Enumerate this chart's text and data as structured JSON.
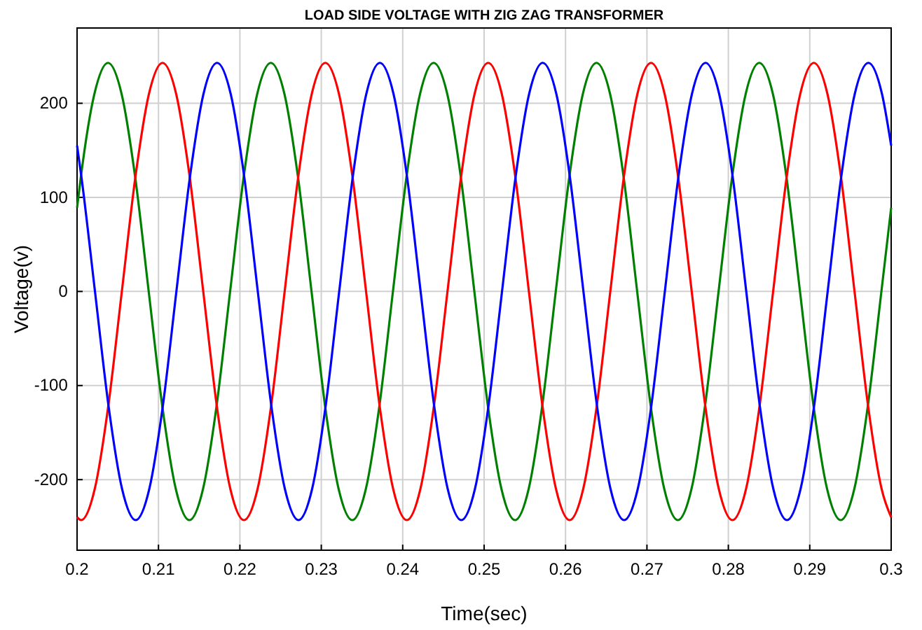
{
  "chart_data": {
    "type": "line",
    "title": "LOAD SIDE VOLTAGE WITH ZIG ZAG TRANSFORMER",
    "xlabel": "Time(sec)",
    "ylabel": "Voltage(v)",
    "xlim": [
      0.2,
      0.3
    ],
    "ylim": [
      -275,
      280
    ],
    "xticks": [
      0.2,
      0.21,
      0.22,
      0.23,
      0.24,
      0.25,
      0.26,
      0.27,
      0.28,
      0.29,
      0.3
    ],
    "yticks": [
      -200,
      -100,
      0,
      100,
      200
    ],
    "grid": true,
    "marker": "none",
    "line_style": "solid",
    "series": [
      {
        "color": "#008000",
        "x": [
          0.2,
          0.20047,
          0.20213,
          0.2038,
          0.20547,
          0.20713,
          0.2088,
          0.21047,
          0.21213,
          0.2138,
          0.21547,
          0.21713,
          0.2188,
          0.22047,
          0.22213,
          0.2238,
          0.22547,
          0.22713,
          0.2288,
          0.23047,
          0.23213,
          0.2338,
          0.23547,
          0.23713,
          0.2388,
          0.24047,
          0.24213,
          0.2438,
          0.24547,
          0.24713,
          0.2488,
          0.25047,
          0.25213,
          0.2538,
          0.25547,
          0.25713,
          0.2588,
          0.26047,
          0.26213,
          0.2638,
          0.26547,
          0.26713,
          0.2688,
          0.27047,
          0.27213,
          0.2738,
          0.27547,
          0.27713,
          0.2788,
          0.28047,
          0.28213,
          0.2838,
          0.28547,
          0.28713,
          0.2888,
          0.29047,
          0.29213,
          0.2938,
          0.29547,
          0.29713,
          0.2988,
          0.3
        ],
        "values": [
          89,
          122,
          210,
          243,
          210,
          122,
          0,
          -122,
          -210,
          -243,
          -210,
          -122,
          0,
          122,
          210,
          243,
          210,
          122,
          0,
          -122,
          -210,
          -243,
          -210,
          -122,
          0,
          122,
          210,
          243,
          210,
          122,
          0,
          -122,
          -210,
          -243,
          -210,
          -122,
          0,
          122,
          210,
          243,
          210,
          122,
          0,
          -122,
          -210,
          -243,
          -210,
          -122,
          0,
          122,
          210,
          243,
          210,
          122,
          0,
          -122,
          -210,
          -243,
          -210,
          -122,
          0,
          89
        ]
      },
      {
        "color": "#ff0000",
        "x": [
          0.2,
          0.2005,
          0.20217,
          0.20383,
          0.2055,
          0.20717,
          0.20883,
          0.2105,
          0.21217,
          0.21383,
          0.2155,
          0.21717,
          0.21883,
          0.2205,
          0.22217,
          0.22383,
          0.2255,
          0.22717,
          0.22883,
          0.2305,
          0.23217,
          0.23383,
          0.2355,
          0.23717,
          0.23883,
          0.2405,
          0.24217,
          0.24383,
          0.2455,
          0.24717,
          0.24883,
          0.2505,
          0.25217,
          0.25383,
          0.2555,
          0.25717,
          0.25883,
          0.2605,
          0.26217,
          0.26383,
          0.2655,
          0.26717,
          0.26883,
          0.2705,
          0.27217,
          0.27383,
          0.2755,
          0.27717,
          0.27883,
          0.2805,
          0.28217,
          0.28383,
          0.2855,
          0.28717,
          0.28883,
          0.2905,
          0.29217,
          0.29383,
          0.2955,
          0.29717,
          0.29883,
          0.3
        ],
        "values": [
          -240,
          -243,
          -210,
          -122,
          0,
          122,
          210,
          243,
          210,
          122,
          0,
          -122,
          -210,
          -243,
          -210,
          -122,
          0,
          122,
          210,
          243,
          210,
          122,
          0,
          -122,
          -210,
          -243,
          -210,
          -122,
          0,
          122,
          210,
          243,
          210,
          122,
          0,
          -122,
          -210,
          -243,
          -210,
          -122,
          0,
          122,
          210,
          243,
          210,
          122,
          0,
          -122,
          -210,
          -243,
          -210,
          -122,
          0,
          122,
          210,
          243,
          210,
          122,
          0,
          -122,
          -210,
          -240
        ]
      },
      {
        "color": "#0000ff",
        "x": [
          0.2,
          0.20053,
          0.2022,
          0.20387,
          0.20553,
          0.2072,
          0.20887,
          0.21053,
          0.2122,
          0.21387,
          0.21553,
          0.2172,
          0.21887,
          0.22053,
          0.2222,
          0.22387,
          0.22553,
          0.2272,
          0.22887,
          0.23053,
          0.2322,
          0.23387,
          0.23553,
          0.2372,
          0.23887,
          0.24053,
          0.2422,
          0.24387,
          0.24553,
          0.2472,
          0.24887,
          0.25053,
          0.2522,
          0.25387,
          0.25553,
          0.2572,
          0.25887,
          0.26053,
          0.2622,
          0.26387,
          0.26553,
          0.2672,
          0.26887,
          0.27053,
          0.2722,
          0.27387,
          0.27553,
          0.2772,
          0.27887,
          0.28053,
          0.2822,
          0.28387,
          0.28553,
          0.2872,
          0.28887,
          0.29053,
          0.2922,
          0.29387,
          0.29553,
          0.2972,
          0.29887,
          0.3
        ],
        "values": [
          155,
          122,
          0,
          -122,
          -210,
          -243,
          -210,
          -122,
          0,
          122,
          210,
          243,
          210,
          122,
          0,
          -122,
          -210,
          -243,
          -210,
          -122,
          0,
          122,
          210,
          243,
          210,
          122,
          0,
          -122,
          -210,
          -243,
          -210,
          -122,
          0,
          122,
          210,
          243,
          210,
          122,
          0,
          -122,
          -210,
          -243,
          -210,
          -122,
          0,
          122,
          210,
          243,
          210,
          122,
          0,
          -122,
          -210,
          -243,
          -210,
          -122,
          0,
          122,
          210,
          243,
          210,
          155
        ]
      }
    ]
  }
}
